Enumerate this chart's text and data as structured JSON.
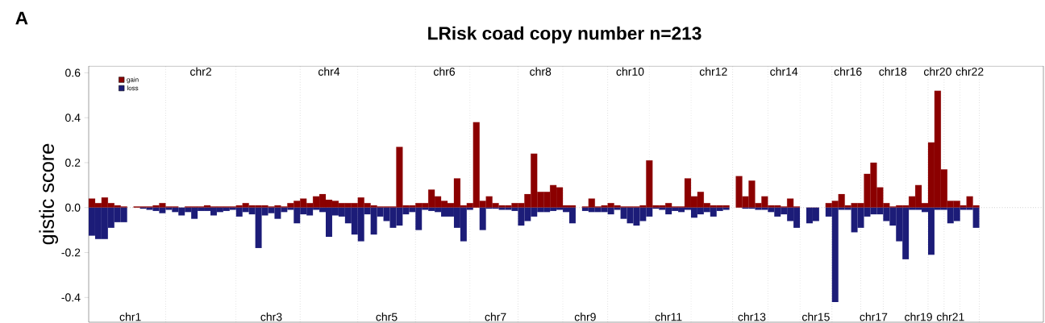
{
  "chart_data": {
    "type": "bar",
    "title": "LRisk coad copy number n=213",
    "ylabel": "gistic score",
    "annotations": [
      "A"
    ],
    "categories": [
      null,
      null,
      null,
      null,
      null,
      null,
      "chr1",
      null,
      null,
      null,
      null,
      null,
      null,
      null,
      null,
      null,
      null,
      "chr2",
      null,
      null,
      null,
      null,
      null,
      null,
      null,
      null,
      null,
      null,
      "chr3",
      null,
      null,
      null,
      null,
      null,
      null,
      null,
      null,
      "chr4",
      null,
      null,
      null,
      null,
      null,
      null,
      null,
      null,
      "chr5",
      null,
      null,
      null,
      null,
      null,
      null,
      null,
      null,
      "chr6",
      null,
      null,
      null,
      null,
      null,
      null,
      null,
      "chr7",
      null,
      null,
      null,
      null,
      null,
      null,
      "chr8",
      null,
      null,
      null,
      null,
      null,
      null,
      "chr9",
      null,
      null,
      null,
      null,
      null,
      null,
      "chr10",
      null,
      null,
      null,
      null,
      null,
      "chr11",
      null,
      null,
      null,
      null,
      null,
      null,
      "chr12",
      null,
      null,
      null,
      null,
      null,
      "chr13",
      null,
      null,
      null,
      null,
      "chr14",
      null,
      null,
      null,
      null,
      "chr15",
      null,
      null,
      null,
      null,
      "chr16",
      null,
      null,
      null,
      "chr17",
      null,
      null,
      "chr18",
      null,
      null,
      null,
      "chr19",
      null,
      null,
      "chr20",
      null,
      "chr21",
      null,
      null,
      "chr22",
      null,
      null,
      null,
      null,
      null,
      null,
      null,
      null,
      null,
      null,
      null
    ],
    "series": [
      {
        "name": "gain",
        "color": "#8b0000",
        "values": [
          0.04,
          0.02,
          0.045,
          0.02,
          0.01,
          0.005,
          null,
          0.005,
          0.005,
          0.005,
          0.01,
          0.02,
          0.005,
          0.005,
          0,
          0.005,
          0.005,
          0.005,
          0.01,
          0.005,
          0.005,
          0.005,
          0.005,
          0.01,
          0.02,
          0.01,
          0.01,
          0.01,
          0.005,
          0.01,
          0.005,
          0.02,
          0.03,
          0.04,
          0.02,
          0.05,
          0.06,
          0.035,
          0.03,
          0.02,
          0.02,
          0.02,
          0.045,
          0.02,
          0.01,
          0.005,
          0.005,
          0.005,
          0.27,
          0.01,
          0.01,
          0.02,
          0.02,
          0.08,
          0.05,
          0.03,
          0.02,
          0.13,
          0.01,
          0.02,
          0.38,
          0.03,
          0.05,
          0.02,
          0.01,
          0.01,
          0.02,
          0.02,
          0.06,
          0.24,
          0.07,
          0.07,
          0.1,
          0.09,
          0.01,
          0.01,
          null,
          0.005,
          0.04,
          0.005,
          0.01,
          0.02,
          0.01,
          0.005,
          0.005,
          0.005,
          0.01,
          0.21,
          0.01,
          0.01,
          0.02,
          0.005,
          0.005,
          0.13,
          0.05,
          0.07,
          0.02,
          0.01,
          0.01,
          0.01,
          null,
          0.14,
          0.05,
          0.12,
          0.02,
          0.05,
          0.01,
          0.01,
          0.005,
          0.04,
          0.005,
          null,
          0,
          0,
          null,
          0.02,
          0.03,
          0.06,
          0.01,
          0.02,
          0.02,
          0.15,
          0.2,
          0.09,
          0.02,
          0.005,
          0.01,
          0.01,
          0.05,
          0.1,
          0.02,
          0.29,
          0.52,
          0.17,
          0.03,
          0.03,
          0.01,
          0.05,
          0.01,
          null,
          null,
          null,
          null,
          null,
          null,
          null,
          null,
          null,
          null
        ]
      },
      {
        "name": "loss",
        "color": "#1c1c78",
        "values": [
          -0.125,
          -0.14,
          -0.14,
          -0.09,
          -0.065,
          -0.065,
          null,
          0,
          -0.005,
          -0.01,
          -0.015,
          -0.025,
          -0.01,
          -0.02,
          -0.035,
          -0.02,
          -0.05,
          -0.015,
          -0.015,
          -0.035,
          -0.02,
          -0.015,
          -0.01,
          -0.04,
          -0.02,
          -0.03,
          -0.18,
          -0.035,
          -0.025,
          -0.05,
          -0.02,
          -0.01,
          -0.07,
          -0.03,
          -0.035,
          -0.01,
          -0.02,
          -0.13,
          -0.035,
          -0.04,
          -0.07,
          -0.12,
          -0.15,
          -0.03,
          -0.12,
          -0.04,
          -0.06,
          -0.09,
          -0.08,
          -0.03,
          -0.02,
          -0.1,
          -0.01,
          -0.015,
          -0.02,
          -0.04,
          -0.04,
          -0.09,
          -0.15,
          -0.01,
          0,
          -0.1,
          -0.005,
          -0.005,
          -0.01,
          -0.01,
          -0.015,
          -0.08,
          -0.06,
          -0.04,
          -0.02,
          -0.02,
          -0.015,
          -0.01,
          -0.02,
          -0.07,
          null,
          -0.015,
          -0.02,
          -0.02,
          -0.02,
          -0.03,
          -0.01,
          -0.05,
          -0.07,
          -0.08,
          -0.06,
          -0.04,
          -0.005,
          -0.01,
          -0.03,
          -0.015,
          -0.02,
          -0.01,
          -0.045,
          -0.03,
          -0.02,
          -0.04,
          -0.015,
          -0.01,
          null,
          0,
          -0.005,
          -0.005,
          -0.01,
          -0.01,
          -0.02,
          -0.04,
          -0.03,
          -0.06,
          -0.09,
          null,
          -0.07,
          -0.06,
          null,
          -0.04,
          -0.42,
          -0.01,
          -0.01,
          -0.11,
          -0.09,
          -0.04,
          -0.03,
          -0.03,
          -0.06,
          -0.08,
          -0.15,
          -0.23,
          -0.01,
          -0.01,
          -0.02,
          -0.21,
          -0.01,
          -0.01,
          -0.07,
          -0.06,
          -0.01,
          -0.01,
          -0.09,
          null,
          null,
          null,
          null,
          null,
          null,
          null,
          null,
          null,
          null
        ]
      }
    ],
    "ylim": [
      -0.51,
      0.63
    ],
    "yticks": [
      -0.4,
      -0.2,
      {
        "value": 0,
        "label": "0.0"
      },
      0.2,
      0.4,
      0.6
    ],
    "stacked": true,
    "legend": "top left",
    "ref_lines": [
      {
        "axis": "y",
        "value": 0,
        "line_style": "dotted",
        "color": "#555555"
      }
    ]
  }
}
